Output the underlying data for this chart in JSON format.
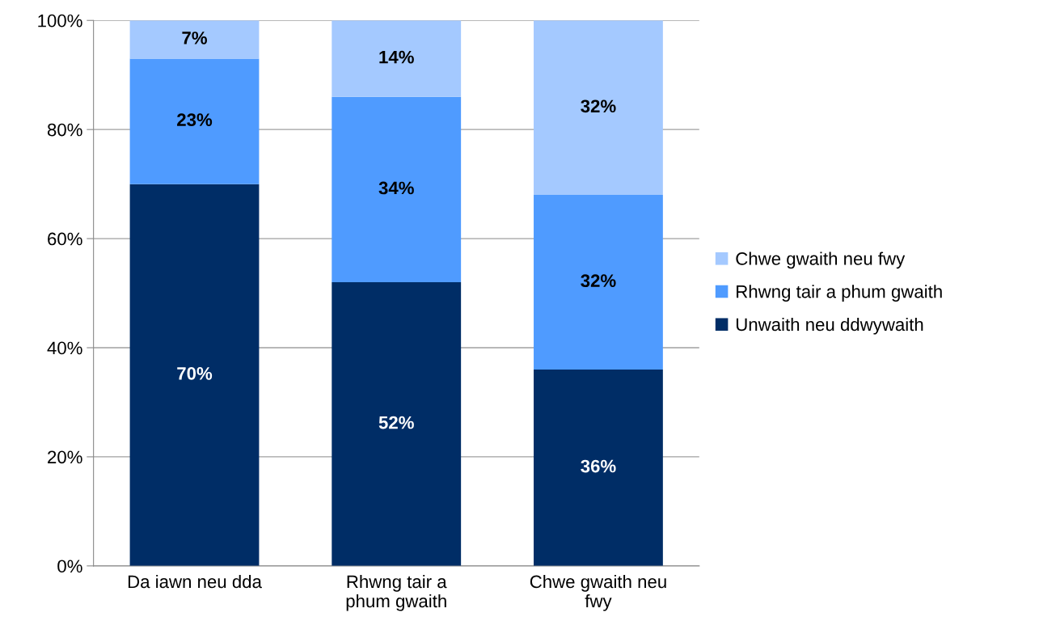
{
  "chart_data": {
    "type": "bar",
    "stacked": true,
    "categories": [
      "Da iawn neu dda",
      "Rhwng tair a\nphum gwaith",
      "Chwe gwaith neu\nfwy"
    ],
    "series": [
      {
        "name": "Unwaith neu ddwywaith",
        "color": "#002d66",
        "values": [
          70,
          52,
          36
        ],
        "value_labels": [
          "70%",
          "52%",
          "36%"
        ]
      },
      {
        "name": "Rhwng tair a phum gwaith",
        "color": "#4f9bff",
        "values": [
          23,
          34,
          32
        ],
        "value_labels": [
          "23%",
          "34%",
          "32%"
        ]
      },
      {
        "name": "Chwe gwaith neu fwy",
        "color": "#a4c9ff",
        "values": [
          7,
          14,
          32
        ],
        "value_labels": [
          "7%",
          "14%",
          "32%"
        ]
      }
    ],
    "ylim": [
      0,
      100
    ],
    "yticks": [
      {
        "value": 0,
        "label": "0%"
      },
      {
        "value": 20,
        "label": "20%"
      },
      {
        "value": 40,
        "label": "40%"
      },
      {
        "value": 60,
        "label": "60%"
      },
      {
        "value": 80,
        "label": "80%"
      },
      {
        "value": 100,
        "label": "100%"
      }
    ],
    "grid": "y",
    "legend": "right"
  }
}
